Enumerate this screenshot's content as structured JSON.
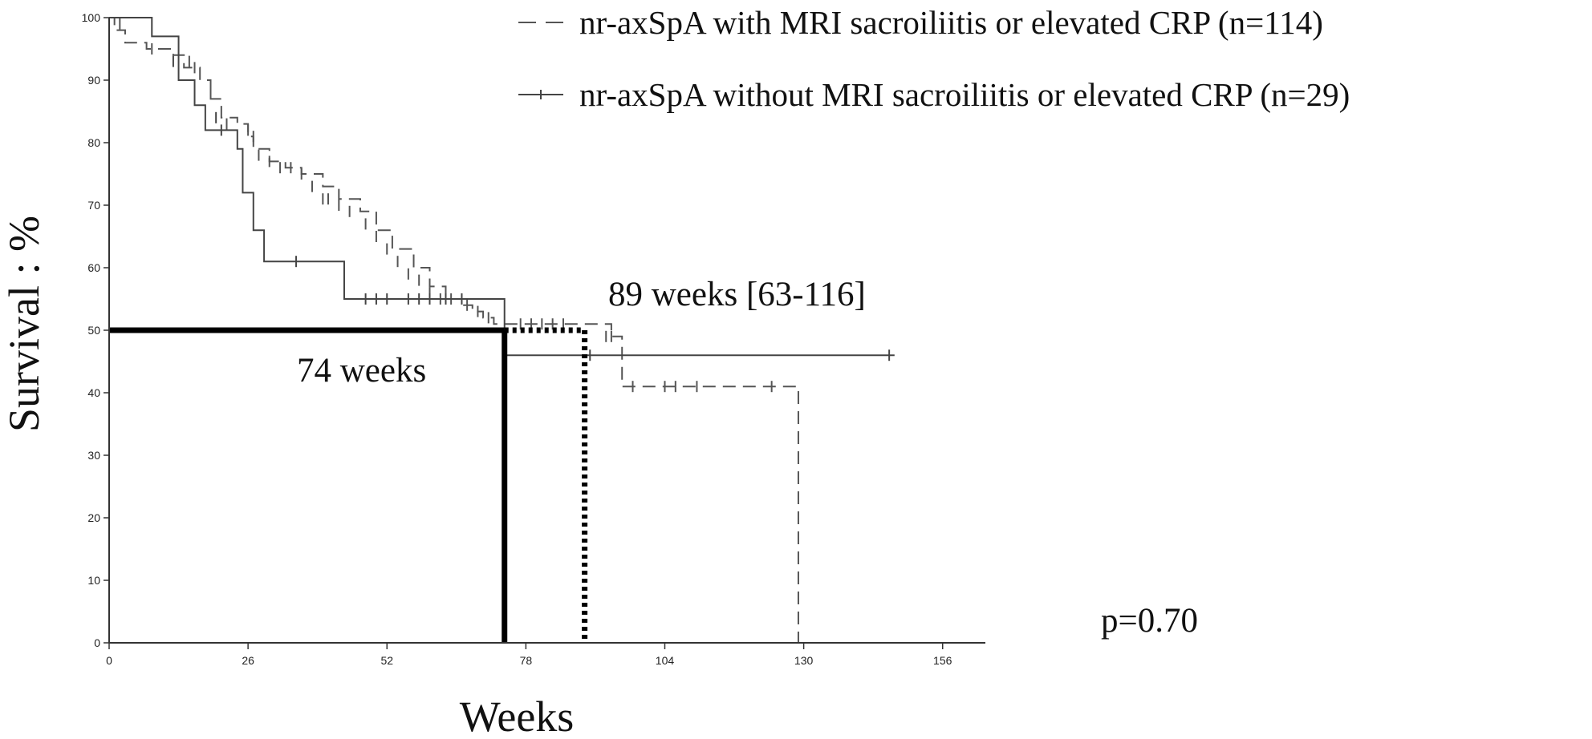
{
  "chart_data": {
    "type": "line",
    "title": "",
    "xlabel": "Weeks",
    "ylabel": "Survival : %",
    "xlim": [
      0,
      164
    ],
    "ylim": [
      0,
      100
    ],
    "xticks": [
      0,
      26,
      52,
      78,
      104,
      130,
      156
    ],
    "yticks": [
      0,
      10,
      20,
      30,
      40,
      50,
      60,
      70,
      80,
      90,
      100
    ],
    "legend_position": "top-right",
    "grid": false,
    "series": [
      {
        "name": "nr-axSpA with MRI sacroiliitis or elevated CRP (n=114)",
        "style": "dashed",
        "color": "#555555",
        "steps": [
          [
            0,
            100
          ],
          [
            1,
            98
          ],
          [
            3,
            96
          ],
          [
            7,
            95
          ],
          [
            12,
            94
          ],
          [
            14,
            92
          ],
          [
            17,
            90
          ],
          [
            19,
            87
          ],
          [
            21,
            84
          ],
          [
            24,
            83
          ],
          [
            26,
            81
          ],
          [
            27,
            79
          ],
          [
            30,
            77
          ],
          [
            33,
            76
          ],
          [
            36,
            75
          ],
          [
            40,
            73
          ],
          [
            43,
            71
          ],
          [
            47,
            69
          ],
          [
            50,
            66
          ],
          [
            53,
            63
          ],
          [
            57,
            60
          ],
          [
            60,
            57
          ],
          [
            63,
            55
          ],
          [
            66,
            54
          ],
          [
            68,
            53
          ],
          [
            70,
            52
          ],
          [
            72,
            51
          ],
          [
            74,
            51
          ],
          [
            94,
            49
          ],
          [
            96,
            41
          ],
          [
            129,
            41
          ],
          [
            129,
            0
          ]
        ],
        "censors": [
          [
            2,
            99
          ],
          [
            8,
            95
          ],
          [
            15,
            93
          ],
          [
            16,
            92
          ],
          [
            19,
            88
          ],
          [
            22,
            83
          ],
          [
            26,
            82
          ],
          [
            27,
            81
          ],
          [
            28,
            78
          ],
          [
            30,
            77
          ],
          [
            32,
            76
          ],
          [
            34,
            76
          ],
          [
            36,
            75
          ],
          [
            38,
            73
          ],
          [
            40,
            71
          ],
          [
            41,
            71
          ],
          [
            43,
            70
          ],
          [
            45,
            69
          ],
          [
            48,
            67
          ],
          [
            50,
            65
          ],
          [
            52,
            63
          ],
          [
            54,
            61
          ],
          [
            56,
            59
          ],
          [
            58,
            58
          ],
          [
            60,
            56
          ],
          [
            62,
            55
          ],
          [
            64,
            55
          ],
          [
            67,
            54
          ],
          [
            69,
            53
          ],
          [
            71,
            52
          ],
          [
            77,
            51
          ],
          [
            79,
            51
          ],
          [
            81,
            51
          ],
          [
            83,
            51
          ],
          [
            85,
            51
          ],
          [
            93,
            49
          ],
          [
            94,
            49
          ],
          [
            98,
            41
          ],
          [
            104,
            41
          ],
          [
            106,
            41
          ],
          [
            110,
            41
          ],
          [
            124,
            41
          ]
        ],
        "median": 89,
        "median_ci": [
          63,
          116
        ]
      },
      {
        "name": "nr-axSpA without MRI sacroiliitis or elevated CRP (n=29)",
        "style": "solid",
        "color": "#444444",
        "steps": [
          [
            0,
            100
          ],
          [
            8,
            100
          ],
          [
            8,
            97
          ],
          [
            13,
            97
          ],
          [
            13,
            90
          ],
          [
            16,
            90
          ],
          [
            16,
            86
          ],
          [
            18,
            86
          ],
          [
            18,
            82
          ],
          [
            24,
            82
          ],
          [
            24,
            79
          ],
          [
            25,
            74
          ],
          [
            25,
            72
          ],
          [
            27,
            72
          ],
          [
            27,
            66
          ],
          [
            29,
            66
          ],
          [
            29,
            61
          ],
          [
            44,
            61
          ],
          [
            44,
            55
          ],
          [
            74,
            55
          ],
          [
            74,
            46
          ],
          [
            147,
            46
          ]
        ],
        "censors": [
          [
            12,
            93
          ],
          [
            20,
            84
          ],
          [
            21,
            82
          ],
          [
            35,
            61
          ],
          [
            48,
            55
          ],
          [
            50,
            55
          ],
          [
            52,
            55
          ],
          [
            56,
            55
          ],
          [
            58,
            55
          ],
          [
            60,
            55
          ],
          [
            63,
            55
          ],
          [
            66,
            55
          ],
          [
            90,
            46
          ],
          [
            146,
            46
          ]
        ],
        "median": 74
      }
    ],
    "median_line_level": 50,
    "annotations": [
      {
        "text": "89 weeks [63-116]"
      },
      {
        "text": "74 weeks"
      },
      {
        "text": "p=0.70"
      }
    ]
  }
}
